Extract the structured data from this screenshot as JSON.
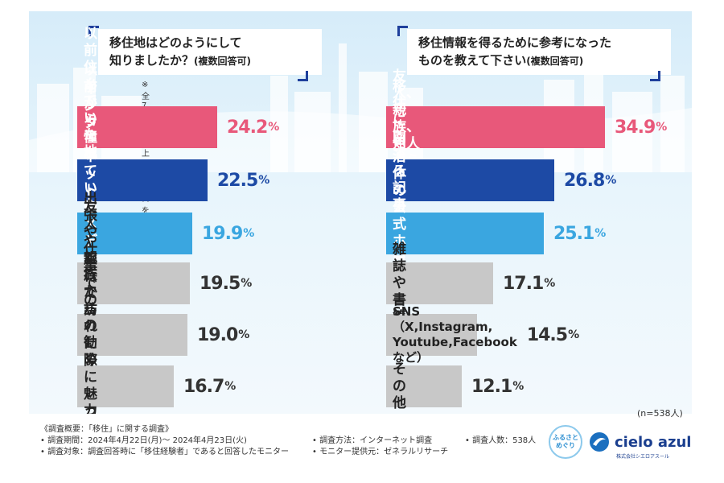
{
  "chart_data": [
    {
      "type": "bar",
      "orientation": "horizontal",
      "title": "移住地はどのようにして知りましたか？",
      "title_line1": "移住地はどのようにして",
      "title_line2": "知りましたか？",
      "title_suffix": "(複数回答可)",
      "note": "※全7項目中上位6項目を抜粋",
      "unit": "%",
      "categories": [
        "以前住んでいた地域だから",
        "以前から憧れていた地域だから",
        "インターネットやメディアでの情報から",
        "出張や仕事での経験から",
        "友人や親族からの勧めがあったから",
        "旅行で訪れた際に魅力を感じたから"
      ],
      "labels_display": [
        "以前住んでいた\n地域だから",
        "以前から憧れていた\n地域だから",
        "インターネットや\nメディアでの情報から",
        "出張や仕事での経験から",
        "友人や親族からの\n勧めがあったから",
        "旅行で訪れた際に\n魅力を感じたから"
      ],
      "values": [
        24.2,
        22.5,
        19.9,
        19.5,
        19.0,
        16.7
      ],
      "value_labels": [
        "24.2",
        "22.5",
        "19.9",
        "19.5",
        "19.0",
        "16.7"
      ],
      "colors": [
        "#e8587a",
        "#1d4aa5",
        "#3aa6e0",
        "#c8c8c8",
        "#c8c8c8",
        "#c8c8c8"
      ],
      "text_colors": [
        "#ffffff",
        "#ffffff",
        "#ffffff",
        "#222222",
        "#222222",
        "#222222"
      ],
      "value_colors": [
        "#e8587a",
        "#1d4aa5",
        "#3aa6e0",
        "#333333",
        "#333333",
        "#333333"
      ]
    },
    {
      "type": "bar",
      "orientation": "horizontal",
      "title": "移住情報を得るために参考になったものを教えて下さい",
      "title_line1": "移住情報を得るために参考になった",
      "title_line2": "ものを教えて下さい",
      "title_suffix": "(複数回答可)",
      "unit": "%",
      "categories": [
        "友人、親族、知人からの話",
        "移住に関する記事やブログ",
        "自治体の公式ホームページ",
        "雑誌や書籍",
        "SNS（X,Instagram,Youtube,Facebookなど）",
        "その他"
      ],
      "labels_display": [
        "友人、親族、\n知人からの話",
        "移住に関する\n記事やブログ",
        "自治体の\n公式ホームページ",
        "雑誌や書籍",
        "SNS（X,Instagram,\nYoutube,Facebookなど）",
        "その他"
      ],
      "values": [
        34.9,
        26.8,
        25.1,
        17.1,
        14.5,
        12.1
      ],
      "value_labels": [
        "34.9",
        "26.8",
        "25.1",
        "17.1",
        "14.5",
        "12.1"
      ],
      "colors": [
        "#e8587a",
        "#1d4aa5",
        "#3aa6e0",
        "#c8c8c8",
        "#c8c8c8",
        "#c8c8c8"
      ],
      "text_colors": [
        "#ffffff",
        "#ffffff",
        "#ffffff",
        "#222222",
        "#222222",
        "#222222"
      ],
      "value_colors": [
        "#e8587a",
        "#1d4aa5",
        "#3aa6e0",
        "#333333",
        "#333333",
        "#333333"
      ]
    }
  ],
  "sample_note": "(n=538人)",
  "footer": {
    "heading": "《調査概要：「移住」に関する調査》",
    "period": "• 調査期間：2024年4月22日(月)～ 2024年4月23日(火)",
    "target": "• 調査対象：調査回答時に「移住経験者」であると回答したモニター",
    "method": "• 調査方法：インターネット調査",
    "provider": "• モニター提供元：ゼネラルリサーチ",
    "count": "• 調査人数：538人"
  },
  "logos": {
    "furusato_line1": "ふるさと",
    "furusato_line2": "めぐり",
    "cielo": "cielo azul",
    "cielo_sub": "株式会社シエロアスール"
  }
}
